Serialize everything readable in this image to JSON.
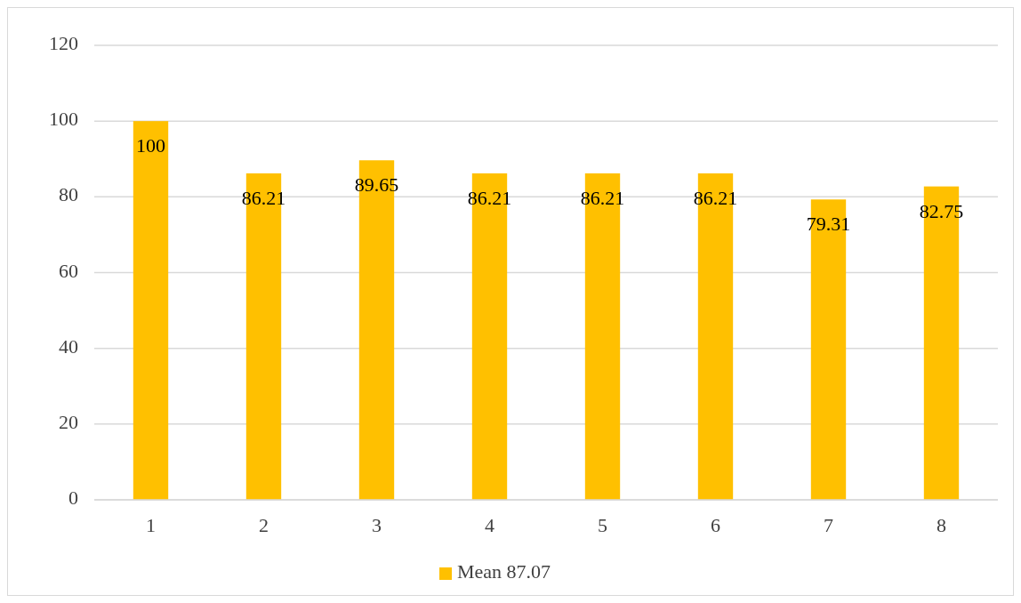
{
  "chart_data": {
    "type": "bar",
    "categories": [
      "1",
      "2",
      "3",
      "4",
      "5",
      "6",
      "7",
      "8"
    ],
    "series": [
      {
        "name": "Mean 87.07",
        "color": "#ffc000",
        "values": [
          100,
          86.21,
          89.65,
          86.21,
          86.21,
          86.21,
          79.31,
          82.75
        ]
      }
    ],
    "ylim": [
      0,
      120
    ],
    "yticks": [
      0,
      20,
      40,
      60,
      80,
      100,
      120
    ],
    "grid": "y",
    "legend": "bottom",
    "data_labels": true
  }
}
